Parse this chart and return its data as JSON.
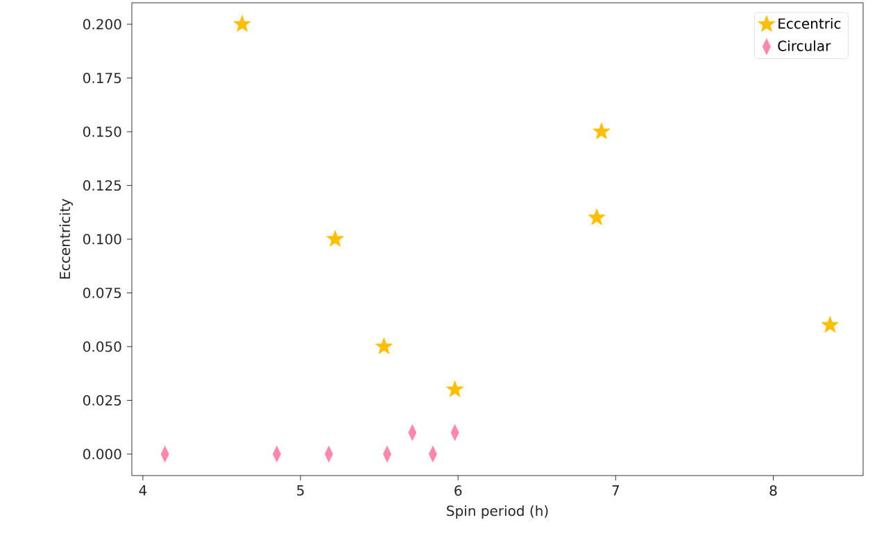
{
  "chart_data": {
    "type": "scatter",
    "xlabel": "Spin period (h)",
    "ylabel": "Eccentricity",
    "xlim": [
      3.93,
      8.57
    ],
    "ylim": [
      -0.01,
      0.21
    ],
    "xticks": [
      4,
      5,
      6,
      7,
      8
    ],
    "yticks": [
      {
        "value": 0,
        "label": "0.000"
      },
      {
        "value": 0.025,
        "label": "0.025"
      },
      {
        "value": 0.05,
        "label": "0.050"
      },
      {
        "value": 0.075,
        "label": "0.075"
      },
      {
        "value": 0.1,
        "label": "0.100"
      },
      {
        "value": 0.125,
        "label": "0.125"
      },
      {
        "value": 0.15,
        "label": "0.150"
      },
      {
        "value": 0.175,
        "label": "0.175"
      },
      {
        "value": 0.2,
        "label": "0.200"
      }
    ],
    "legend": "top right",
    "series": [
      {
        "name": "Eccentric",
        "color": "#ffbf00",
        "marker": "star",
        "x": [
          4.63,
          5.22,
          5.53,
          5.98,
          6.91,
          6.88,
          8.36
        ],
        "values": [
          0.2,
          0.1,
          0.05,
          0.03,
          0.15,
          0.11,
          0.06
        ]
      },
      {
        "name": "Circular",
        "color": "#ff88aa",
        "marker": "diamond",
        "x": [
          4.14,
          4.85,
          5.18,
          5.55,
          5.71,
          5.84,
          5.98
        ],
        "values": [
          0,
          0,
          0,
          0,
          0.01,
          0,
          0.01
        ]
      }
    ]
  }
}
